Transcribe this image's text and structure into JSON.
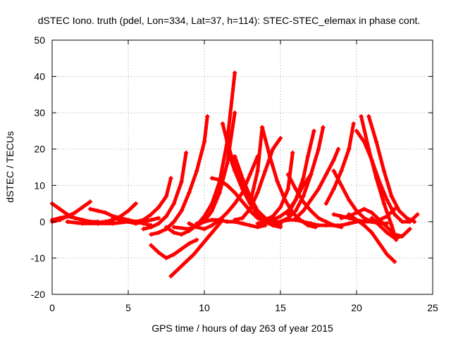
{
  "chart_data": {
    "type": "scatter",
    "title": "dSTEC Iono. truth (pdel, Lon=334, Lat=37, h=114): STEC-STEC_elemax in phase cont.",
    "xlabel": "GPS time / hours of day 263 of year 2015",
    "ylabel": "dSTEC  / TECUs",
    "xlim": [
      0,
      25
    ],
    "ylim": [
      -20,
      50
    ],
    "xticks": [
      0,
      5,
      10,
      15,
      20,
      25
    ],
    "yticks": [
      -20,
      -10,
      0,
      10,
      20,
      30,
      40,
      50
    ],
    "grid": true,
    "marker": "+",
    "color": "#ff0000",
    "series": [
      {
        "x": [
          0.0,
          0.5,
          1.0,
          1.5,
          2.0,
          2.5
        ],
        "y": [
          0.0,
          0.5,
          1.5,
          2.5,
          4.0,
          5.5
        ]
      },
      {
        "x": [
          0.0,
          0.5,
          1.0,
          1.5,
          2.0,
          2.5,
          3.0
        ],
        "y": [
          5.0,
          3.5,
          2.0,
          1.0,
          0.5,
          0.0,
          0.0
        ]
      },
      {
        "x": [
          0.0,
          0.5,
          1.0,
          1.5,
          2.0,
          2.5,
          3.0,
          3.5,
          4.0
        ],
        "y": [
          0.5,
          1.0,
          1.5,
          1.0,
          0.5,
          0.0,
          -0.2,
          0.0,
          0.5
        ]
      },
      {
        "x": [
          1.0,
          2.0,
          3.0,
          4.0,
          5.0,
          6.0
        ],
        "y": [
          0.0,
          -0.5,
          -0.5,
          -0.5,
          0.0,
          0.0
        ]
      },
      {
        "x": [
          2.5,
          3.0,
          3.5,
          4.0,
          4.5,
          5.0,
          5.5,
          6.0,
          6.5
        ],
        "y": [
          3.5,
          3.0,
          2.5,
          1.5,
          1.0,
          0.5,
          0.0,
          -0.5,
          -1.0
        ]
      },
      {
        "x": [
          3.0,
          3.5,
          4.0,
          4.5,
          5.0,
          5.5
        ],
        "y": [
          -0.5,
          0.0,
          0.5,
          1.5,
          3.0,
          5.0
        ]
      },
      {
        "x": [
          4.0,
          4.5,
          5.0,
          5.5,
          6.0,
          6.5,
          7.0
        ],
        "y": [
          1.0,
          0.5,
          0.0,
          -0.5,
          0.0,
          0.5,
          1.0
        ]
      },
      {
        "x": [
          5.5,
          6.0,
          6.5,
          7.0,
          7.5,
          7.8
        ],
        "y": [
          0.0,
          0.5,
          2.0,
          4.0,
          7.0,
          12.0
        ]
      },
      {
        "x": [
          6.0,
          6.5,
          7.0,
          7.5,
          8.0,
          8.5,
          8.8
        ],
        "y": [
          -2.0,
          -1.5,
          -0.5,
          1.5,
          5.0,
          11.0,
          19.0
        ]
      },
      {
        "x": [
          6.5,
          7.0,
          7.5,
          8.0,
          8.5,
          9.0,
          9.5,
          10.0,
          10.2
        ],
        "y": [
          -3.5,
          -3.0,
          -2.0,
          0.0,
          3.0,
          8.0,
          14.0,
          22.0,
          29.0
        ]
      },
      {
        "x": [
          6.5,
          7.0,
          7.5,
          8.0,
          8.5,
          9.0,
          9.5
        ],
        "y": [
          -6.5,
          -8.5,
          -10.0,
          -9.0,
          -7.5,
          -6.0,
          -5.0
        ]
      },
      {
        "x": [
          7.8,
          8.3,
          8.8,
          9.3,
          9.8,
          10.3,
          10.8,
          11.2
        ],
        "y": [
          -15.0,
          -13.0,
          -11.0,
          -9.0,
          -6.5,
          -4.0,
          -1.5,
          0.5
        ]
      },
      {
        "x": [
          7.5,
          8.0,
          8.5,
          9.0,
          9.5,
          10.0,
          10.5,
          11.0,
          11.5,
          12.0
        ],
        "y": [
          -1.5,
          -3.0,
          -3.5,
          -2.5,
          -1.0,
          1.5,
          5.0,
          11.0,
          22.0,
          41.0
        ]
      },
      {
        "x": [
          8.0,
          9.0,
          10.0,
          10.5,
          11.0,
          11.5,
          12.0
        ],
        "y": [
          -1.5,
          -2.0,
          0.0,
          3.0,
          8.0,
          16.0,
          30.0
        ]
      },
      {
        "x": [
          9.0,
          9.5,
          10.0,
          10.5,
          11.0,
          11.5,
          12.0,
          12.5,
          13.0,
          13.5
        ],
        "y": [
          -0.5,
          -1.5,
          -2.0,
          -1.0,
          0.5,
          2.5,
          5.0,
          8.0,
          13.0,
          18.0
        ]
      },
      {
        "x": [
          10.5,
          11.0,
          11.5,
          12.0,
          12.5,
          13.0,
          13.5,
          14.0
        ],
        "y": [
          12.0,
          11.5,
          10.0,
          8.0,
          5.5,
          3.0,
          1.0,
          0.0
        ]
      },
      {
        "x": [
          11.2,
          11.5,
          12.0,
          12.5,
          13.0,
          13.5,
          14.0,
          14.5,
          15.0
        ],
        "y": [
          27.0,
          22.0,
          15.0,
          9.5,
          5.5,
          3.0,
          1.0,
          0.0,
          -0.5
        ]
      },
      {
        "x": [
          9.5,
          10.0,
          10.5,
          11.0,
          11.5,
          12.0,
          12.5,
          13.0,
          13.5,
          14.0
        ],
        "y": [
          -0.5,
          0.0,
          0.5,
          0.5,
          0.0,
          0.0,
          -0.5,
          -1.0,
          -1.5,
          -1.0
        ]
      },
      {
        "x": [
          11.5,
          12.0,
          12.5,
          13.0,
          13.5,
          14.0,
          14.5,
          15.0
        ],
        "y": [
          20.0,
          14.0,
          9.0,
          5.0,
          2.0,
          0.0,
          -1.0,
          -1.5
        ]
      },
      {
        "x": [
          12.0,
          12.5,
          13.0,
          13.5,
          14.0,
          14.5,
          15.0
        ],
        "y": [
          18.0,
          12.0,
          7.0,
          3.0,
          0.5,
          -0.5,
          -1.0
        ]
      },
      {
        "x": [
          12.0,
          12.5,
          13.0,
          13.5,
          14.0,
          14.5,
          15.0
        ],
        "y": [
          0.5,
          1.0,
          3.5,
          8.0,
          14.0,
          20.0,
          23.0
        ]
      },
      {
        "x": [
          13.0,
          13.5,
          13.8
        ],
        "y": [
          5.0,
          14.0,
          26.0
        ]
      },
      {
        "x": [
          13.8,
          14.3,
          14.8,
          15.3,
          15.8,
          16.3,
          16.8,
          17.3
        ],
        "y": [
          26.0,
          18.0,
          11.0,
          6.0,
          2.5,
          0.5,
          -1.0,
          -1.5
        ]
      },
      {
        "x": [
          13.5,
          14.0,
          14.5,
          15.0,
          15.5,
          16.0,
          16.5,
          17.0
        ],
        "y": [
          -0.5,
          0.0,
          0.5,
          1.5,
          3.0,
          6.0,
          10.0,
          13.0
        ]
      },
      {
        "x": [
          14.0,
          14.5,
          15.0,
          15.5,
          15.8
        ],
        "y": [
          0.5,
          1.5,
          4.0,
          9.0,
          19.0
        ]
      },
      {
        "x": [
          15.5,
          16.0,
          16.5,
          17.0,
          17.5,
          18.0,
          18.5,
          19.0
        ],
        "y": [
          13.0,
          9.0,
          5.5,
          3.0,
          1.0,
          0.0,
          -1.0,
          -1.5
        ]
      },
      {
        "x": [
          14.5,
          15.0,
          15.5,
          16.0,
          16.5,
          17.0,
          17.5,
          18.0,
          18.5,
          19.0,
          19.5,
          20.0
        ],
        "y": [
          0.0,
          0.0,
          0.5,
          0.5,
          0.0,
          -0.5,
          -1.0,
          -1.0,
          -1.0,
          -1.0,
          -0.5,
          0.0
        ]
      },
      {
        "x": [
          15.0,
          15.5,
          16.0,
          16.5,
          17.0,
          17.5,
          17.8
        ],
        "y": [
          0.0,
          1.0,
          3.0,
          7.0,
          13.0,
          20.0,
          26.0
        ]
      },
      {
        "x": [
          16.0,
          16.5,
          17.0,
          17.5,
          18.0,
          18.5,
          18.8
        ],
        "y": [
          1.0,
          3.0,
          6.0,
          9.0,
          13.0,
          17.0,
          20.0
        ]
      },
      {
        "x": [
          15.5,
          16.0,
          16.5,
          16.8,
          17.2
        ],
        "y": [
          2.0,
          6.0,
          12.0,
          18.0,
          25.0
        ]
      },
      {
        "x": [
          18.5,
          19.0,
          19.5,
          20.0,
          20.5,
          21.0,
          21.5,
          22.0
        ],
        "y": [
          14.0,
          10.0,
          6.0,
          3.0,
          1.0,
          0.0,
          -0.5,
          -0.5
        ]
      },
      {
        "x": [
          18.0,
          18.5,
          19.0,
          19.5,
          19.8
        ],
        "y": [
          5.0,
          9.0,
          14.0,
          20.0,
          27.0
        ]
      },
      {
        "x": [
          18.5,
          19.0,
          19.5,
          20.0,
          20.5,
          21.0,
          21.5,
          22.0,
          22.5
        ],
        "y": [
          2.0,
          1.5,
          1.0,
          0.5,
          0.0,
          0.0,
          0.5,
          1.5,
          3.5
        ]
      },
      {
        "x": [
          19.0,
          19.5,
          20.0,
          20.5,
          21.0,
          21.5,
          22.0,
          22.5,
          23.0
        ],
        "y": [
          1.0,
          1.5,
          2.5,
          3.5,
          2.5,
          0.5,
          -1.5,
          -3.5,
          -4.0
        ]
      },
      {
        "x": [
          20.0,
          20.5,
          21.0,
          21.5,
          22.0,
          22.5,
          23.0,
          23.5,
          24.0
        ],
        "y": [
          25.0,
          22.0,
          17.0,
          11.0,
          6.0,
          2.0,
          0.0,
          0.0,
          2.0
        ]
      },
      {
        "x": [
          20.3,
          20.8,
          21.3,
          21.8,
          22.3,
          22.6
        ],
        "y": [
          29.0,
          20.0,
          12.0,
          5.0,
          -1.0,
          -5.0
        ]
      },
      {
        "x": [
          20.8,
          21.3,
          21.8,
          22.3,
          22.8,
          23.3,
          23.8
        ],
        "y": [
          29.0,
          22.0,
          14.0,
          7.0,
          3.0,
          1.0,
          0.0
        ]
      },
      {
        "x": [
          19.5,
          20.0,
          20.5,
          21.0,
          21.5,
          22.0,
          22.5
        ],
        "y": [
          2.0,
          0.5,
          -1.0,
          -3.0,
          -6.0,
          -9.0,
          -11.0
        ]
      },
      {
        "x": [
          21.0,
          21.5,
          22.0,
          22.5,
          23.0,
          23.5
        ],
        "y": [
          1.0,
          -1.0,
          -3.0,
          -4.5,
          -4.0,
          -2.0
        ]
      }
    ]
  }
}
